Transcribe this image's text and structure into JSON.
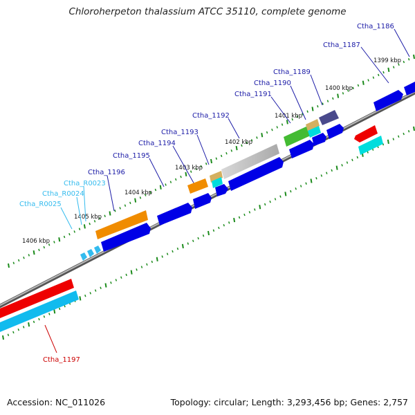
{
  "title": "Chloroherpeton thalassium ATCC 35110, complete genome",
  "footer": {
    "accession": "Accession: NC_011026",
    "topology": "Topology: circular; Length: 3,293,456 bp; Genes: 2,757"
  },
  "colors": {
    "backbone": "#8a8a8a",
    "tick": "#1a8a1a",
    "label_protein": "#1a1aa6",
    "label_rna": "#33bbee",
    "label_highlight": "#cc0000",
    "default_gene": "#0000e6"
  },
  "kbp_labels": [
    "1399 kbp",
    "1400 kbp",
    "1401 kbp",
    "1402 kbp",
    "1403 kbp",
    "1404 kbp",
    "1405 kbp",
    "1406 kbp"
  ],
  "gene_labels": [
    {
      "text": "Ctha_1186",
      "type": "protein"
    },
    {
      "text": "Ctha_1187",
      "type": "protein"
    },
    {
      "text": "Ctha_1189",
      "type": "protein"
    },
    {
      "text": "Ctha_1190",
      "type": "protein"
    },
    {
      "text": "Ctha_1191",
      "type": "protein"
    },
    {
      "text": "Ctha_1192",
      "type": "protein"
    },
    {
      "text": "Ctha_1193",
      "type": "protein"
    },
    {
      "text": "Ctha_1194",
      "type": "protein"
    },
    {
      "text": "Ctha_1195",
      "type": "protein"
    },
    {
      "text": "Ctha_1196",
      "type": "protein"
    },
    {
      "text": "Ctha_R0023",
      "type": "rna"
    },
    {
      "text": "Ctha_R0024",
      "type": "rna"
    },
    {
      "text": "Ctha_R0025",
      "type": "rna"
    },
    {
      "text": "Ctha_1197",
      "type": "highlight"
    }
  ]
}
